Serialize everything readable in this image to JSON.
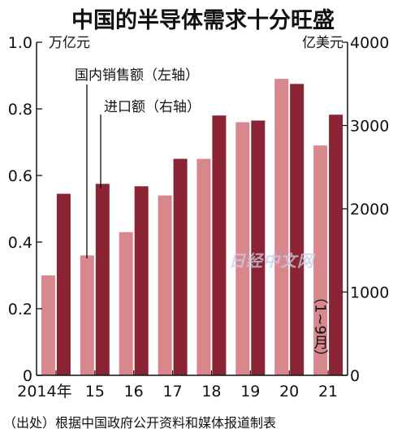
{
  "colors": {
    "domestic": "#d8878c",
    "import": "#8b2432",
    "axis": "#111111"
  },
  "watermark": "日经中文网",
  "chart_data": {
    "type": "bar",
    "title": "中国的半导体需求十分旺盛",
    "source": "（出处）根据中国政府公开资料和媒体报道制表",
    "period_note": "（1~9月）",
    "categories": [
      "2014年",
      "15",
      "16",
      "17",
      "18",
      "19",
      "20",
      "21"
    ],
    "left_axis": {
      "unit": "万亿元",
      "ylim": [
        0,
        1.0
      ],
      "ticks": [
        "0",
        "0.2",
        "0.4",
        "0.6",
        "0.8",
        "1.0"
      ],
      "tick_values": [
        0,
        0.2,
        0.4,
        0.6,
        0.8,
        1.0
      ]
    },
    "right_axis": {
      "unit": "亿美元",
      "ylim": [
        0,
        4000
      ],
      "ticks": [
        "0",
        "1000",
        "2000",
        "3000",
        "4000"
      ],
      "tick_values": [
        0,
        1000,
        2000,
        3000,
        4000
      ]
    },
    "series": [
      {
        "name": "国内销售额（左轴）",
        "axis": "left",
        "values": [
          0.3,
          0.36,
          0.43,
          0.54,
          0.65,
          0.76,
          0.89,
          0.69
        ]
      },
      {
        "name": "进口额（右轴）",
        "axis": "right",
        "values": [
          2180,
          2300,
          2270,
          2600,
          3120,
          3060,
          3500,
          3130
        ]
      }
    ],
    "grid": false,
    "legend_placement": "inside-top-left"
  }
}
